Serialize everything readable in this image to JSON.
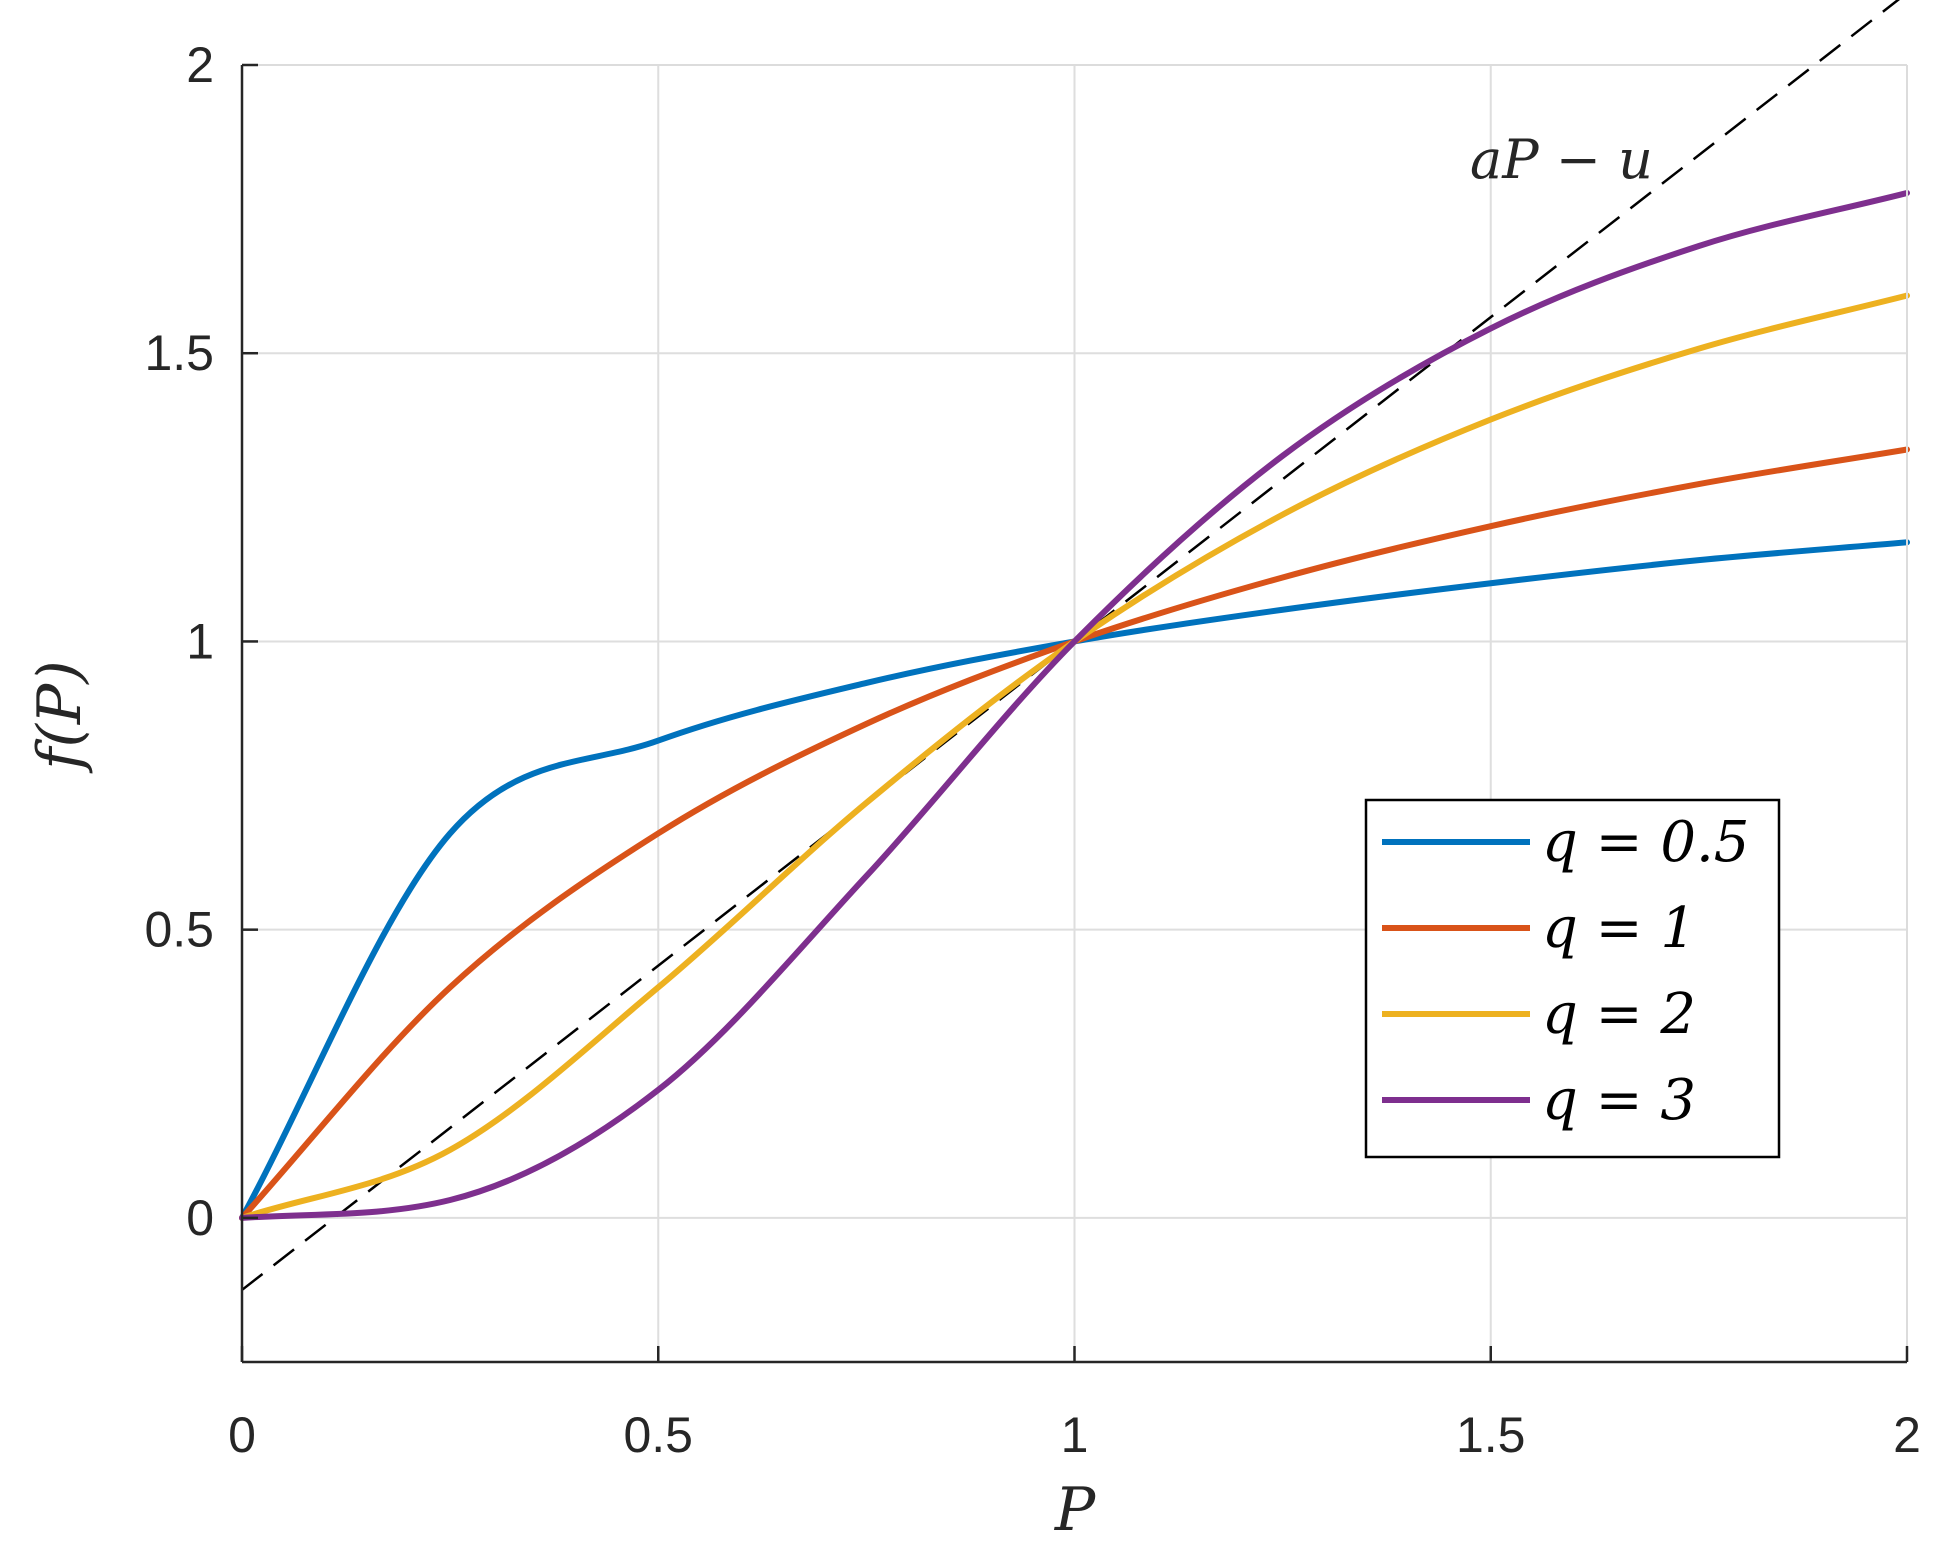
{
  "chart_data": {
    "type": "line",
    "title": "",
    "xlabel": "P",
    "ylabel": "f(P)",
    "xlim": [
      0,
      2
    ],
    "ylim": [
      -0.25,
      2
    ],
    "grid": true,
    "xticks": [
      0,
      0.5,
      1,
      1.5,
      2
    ],
    "yticks": [
      0,
      0.5,
      1,
      1.5,
      2
    ],
    "xtick_labels": [
      "0",
      "0.5",
      "1",
      "1.5",
      "2"
    ],
    "ytick_labels": [
      "0",
      "0.5",
      "1",
      "1.5",
      "2"
    ],
    "legend": {
      "placement": "right",
      "entries": [
        "q = 0.5",
        "q = 1",
        "q = 2",
        "q = 3"
      ]
    },
    "x": [
      0,
      0.25,
      0.5,
      0.75,
      1,
      1.25,
      1.5,
      1.75,
      2
    ],
    "series": [
      {
        "name": "q = 0.5",
        "color": "#0072BD",
        "values": [
          0,
          0.667,
          0.828,
          0.928,
          1.0,
          1.055,
          1.101,
          1.141,
          1.172
        ]
      },
      {
        "name": "q = 1",
        "color": "#D95319",
        "values": [
          0,
          0.4,
          0.667,
          0.857,
          1.0,
          1.111,
          1.2,
          1.273,
          1.333
        ]
      },
      {
        "name": "q = 2",
        "color": "#EDB120",
        "values": [
          0,
          0.118,
          0.4,
          0.72,
          1.0,
          1.22,
          1.385,
          1.508,
          1.6
        ]
      },
      {
        "name": "q = 3",
        "color": "#7E2F8E",
        "values": [
          0,
          0.031,
          0.222,
          0.593,
          1.0,
          1.322,
          1.543,
          1.686,
          1.778
        ]
      }
    ],
    "reference_line": {
      "label": "aP − u",
      "style": "dashed",
      "color": "#000000",
      "x": [
        0,
        2
      ],
      "y": [
        -0.125,
        2.125
      ]
    }
  }
}
